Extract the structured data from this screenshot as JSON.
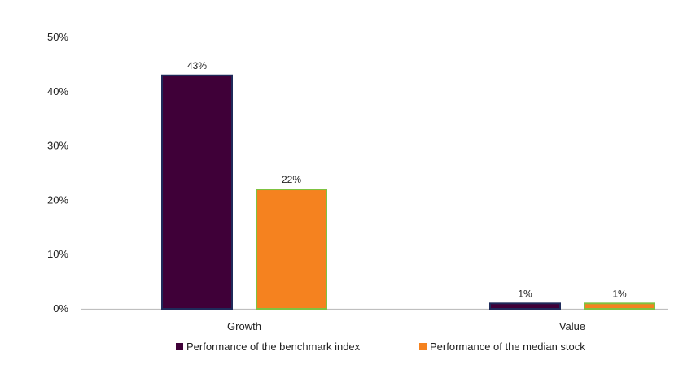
{
  "chart_data": {
    "type": "bar",
    "title": "",
    "xlabel": "",
    "ylabel": "",
    "categories": [
      "Growth",
      "Value"
    ],
    "series": [
      {
        "name": "Performance of the benchmark index",
        "values": [
          43,
          1
        ],
        "labels": [
          "43%",
          "1%"
        ],
        "color": "#3f0038",
        "border_color": "#1f2a5a"
      },
      {
        "name": "Performance of the median stock",
        "values": [
          22,
          1
        ],
        "labels": [
          "22%",
          "1%"
        ],
        "color": "#f5821f",
        "border_color": "#7fc241"
      }
    ],
    "ylim": [
      0,
      50
    ],
    "yticks": [
      0,
      10,
      20,
      30,
      40,
      50
    ],
    "ytick_labels": [
      "0%",
      "10%",
      "20%",
      "30%",
      "40%",
      "50%"
    ],
    "grid": false,
    "legend_position": "bottom-center",
    "axis_color": "#bfbfbf"
  }
}
